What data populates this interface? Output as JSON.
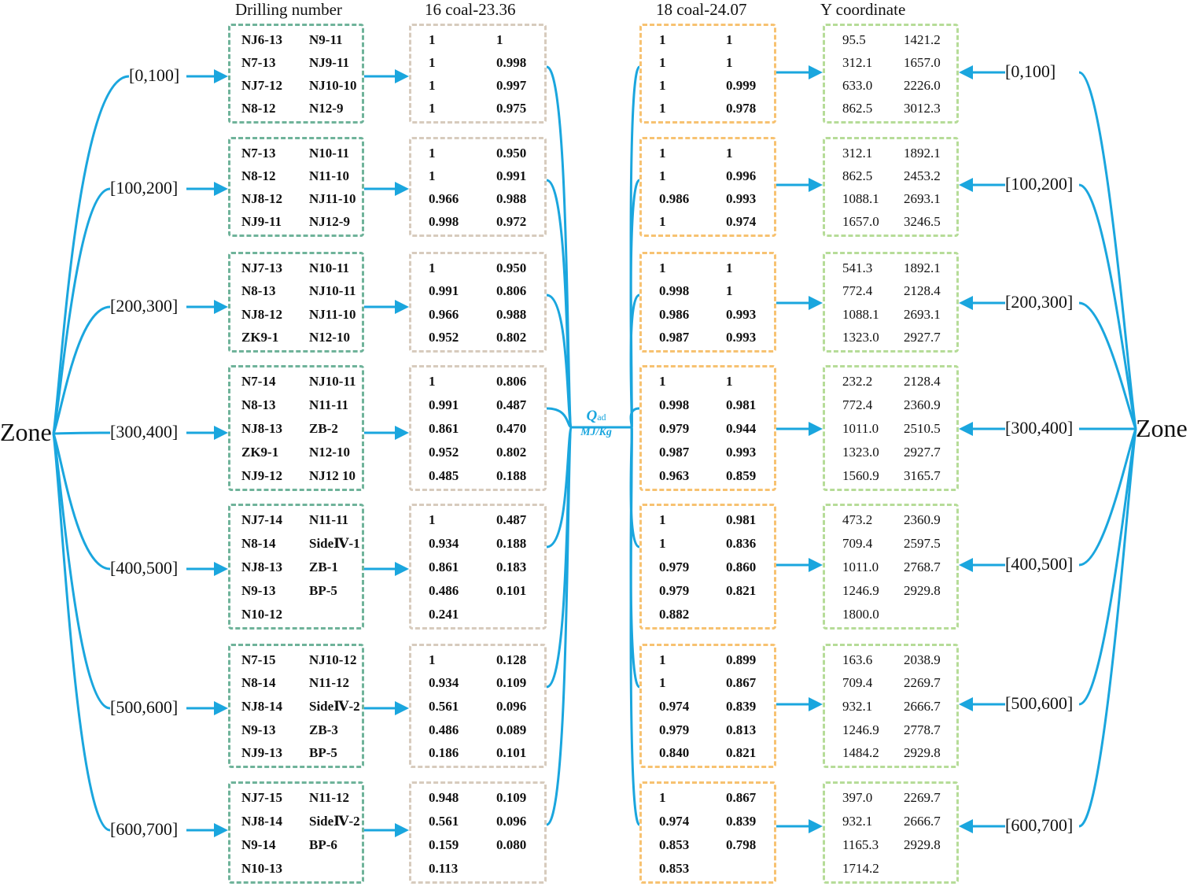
{
  "headers": {
    "drilling": "Drilling number",
    "coal16": "16 coal-23.36",
    "coal18": "18 coal-24.07",
    "ycoord": "Y coordinate"
  },
  "zone_left": "Zone",
  "zone_right": "Zone",
  "qad": {
    "symbol": "Q",
    "sub": "ad",
    "unit": "MJ/Kg"
  },
  "colors": {
    "arrow": "#1aa6de",
    "drill_border": "#6fb39a",
    "coal16_border": "#d7cbbd",
    "coal18_border": "#f7c271",
    "ycoord_border": "#b6dc98"
  },
  "groups": [
    {
      "range": "[0,100]",
      "drilling": [
        [
          "NJ6-13",
          "N9-11"
        ],
        [
          "N7-13",
          "NJ9-11"
        ],
        [
          "NJ7-12",
          "NJ10-10"
        ],
        [
          "N8-12",
          "N12-9"
        ]
      ],
      "coal16": [
        [
          "1",
          "1"
        ],
        [
          "1",
          "0.998"
        ],
        [
          "1",
          "0.997"
        ],
        [
          "1",
          "0.975"
        ]
      ],
      "coal18": [
        [
          "1",
          "1"
        ],
        [
          "1",
          "1"
        ],
        [
          "1",
          "0.999"
        ],
        [
          "1",
          "0.978"
        ]
      ],
      "ycoord": [
        [
          "95.5",
          "1421.2"
        ],
        [
          "312.1",
          "1657.0"
        ],
        [
          "633.0",
          "2226.0"
        ],
        [
          "862.5",
          "3012.3"
        ]
      ]
    },
    {
      "range": "[100,200]",
      "drilling": [
        [
          "N7-13",
          "N10-11"
        ],
        [
          "N8-12",
          "N11-10"
        ],
        [
          "NJ8-12",
          "NJ11-10"
        ],
        [
          "NJ9-11",
          "NJ12-9"
        ]
      ],
      "coal16": [
        [
          "1",
          "0.950"
        ],
        [
          "1",
          "0.991"
        ],
        [
          "0.966",
          "0.988"
        ],
        [
          "0.998",
          "0.972"
        ]
      ],
      "coal18": [
        [
          "1",
          "1"
        ],
        [
          "1",
          "0.996"
        ],
        [
          "0.986",
          "0.993"
        ],
        [
          "1",
          "0.974"
        ]
      ],
      "ycoord": [
        [
          "312.1",
          "1892.1"
        ],
        [
          "862.5",
          "2453.2"
        ],
        [
          "1088.1",
          "2693.1"
        ],
        [
          "1657.0",
          "3246.5"
        ]
      ]
    },
    {
      "range": "[200,300]",
      "drilling": [
        [
          "NJ7-13",
          "N10-11"
        ],
        [
          "N8-13",
          "NJ10-11"
        ],
        [
          "NJ8-12",
          "NJ11-10"
        ],
        [
          "ZK9-1",
          "N12-10"
        ]
      ],
      "coal16": [
        [
          "1",
          "0.950"
        ],
        [
          "0.991",
          "0.806"
        ],
        [
          "0.966",
          "0.988"
        ],
        [
          "0.952",
          "0.802"
        ]
      ],
      "coal18": [
        [
          "1",
          "1"
        ],
        [
          "0.998",
          "1"
        ],
        [
          "0.986",
          "0.993"
        ],
        [
          "0.987",
          "0.993"
        ]
      ],
      "ycoord": [
        [
          "541.3",
          "1892.1"
        ],
        [
          "772.4",
          "2128.4"
        ],
        [
          "1088.1",
          "2693.1"
        ],
        [
          "1323.0",
          "2927.7"
        ]
      ]
    },
    {
      "range": "[300,400]",
      "drilling": [
        [
          "N7-14",
          "NJ10-11"
        ],
        [
          "N8-13",
          "N11-11"
        ],
        [
          "NJ8-13",
          "ZB-2"
        ],
        [
          "ZK9-1",
          "N12-10"
        ],
        [
          "NJ9-12",
          "NJ12 10"
        ]
      ],
      "coal16": [
        [
          "1",
          "0.806"
        ],
        [
          "0.991",
          "0.487"
        ],
        [
          "0.861",
          "0.470"
        ],
        [
          "0.952",
          "0.802"
        ],
        [
          "0.485",
          "0.188"
        ]
      ],
      "coal18": [
        [
          "1",
          "1"
        ],
        [
          "0.998",
          "0.981"
        ],
        [
          "0.979",
          "0.944"
        ],
        [
          "0.987",
          "0.993"
        ],
        [
          "0.963",
          "0.859"
        ]
      ],
      "ycoord": [
        [
          "232.2",
          "2128.4"
        ],
        [
          "772.4",
          "2360.9"
        ],
        [
          "1011.0",
          "2510.5"
        ],
        [
          "1323.0",
          "2927.7"
        ],
        [
          "1560.9",
          "3165.7"
        ]
      ]
    },
    {
      "range": "[400,500]",
      "drilling": [
        [
          "NJ7-14",
          "N11-11"
        ],
        [
          "N8-14",
          "SideⅣ-1"
        ],
        [
          "NJ8-13",
          "ZB-1"
        ],
        [
          "N9-13",
          "BP-5"
        ],
        [
          "N10-12",
          ""
        ]
      ],
      "coal16": [
        [
          "1",
          "0.487"
        ],
        [
          "0.934",
          "0.188"
        ],
        [
          "0.861",
          "0.183"
        ],
        [
          "0.486",
          "0.101"
        ],
        [
          "0.241",
          ""
        ]
      ],
      "coal18": [
        [
          "1",
          "0.981"
        ],
        [
          "1",
          "0.836"
        ],
        [
          "0.979",
          "0.860"
        ],
        [
          "0.979",
          "0.821"
        ],
        [
          "0.882",
          ""
        ]
      ],
      "ycoord": [
        [
          "473.2",
          "2360.9"
        ],
        [
          "709.4",
          "2597.5"
        ],
        [
          "1011.0",
          "2768.7"
        ],
        [
          "1246.9",
          "2929.8"
        ],
        [
          "1800.0",
          ""
        ]
      ]
    },
    {
      "range": "[500,600]",
      "drilling": [
        [
          "N7-15",
          "NJ10-12"
        ],
        [
          "N8-14",
          "N11-12"
        ],
        [
          "NJ8-14",
          "SideⅣ-2"
        ],
        [
          "N9-13",
          "ZB-3"
        ],
        [
          "NJ9-13",
          "BP-5"
        ]
      ],
      "coal16": [
        [
          "1",
          "0.128"
        ],
        [
          "0.934",
          "0.109"
        ],
        [
          "0.561",
          "0.096"
        ],
        [
          "0.486",
          "0.089"
        ],
        [
          "0.186",
          "0.101"
        ]
      ],
      "coal18": [
        [
          "1",
          "0.899"
        ],
        [
          "1",
          "0.867"
        ],
        [
          "0.974",
          "0.839"
        ],
        [
          "0.979",
          "0.813"
        ],
        [
          "0.840",
          "0.821"
        ]
      ],
      "ycoord": [
        [
          "163.6",
          "2038.9"
        ],
        [
          "709.4",
          "2269.7"
        ],
        [
          "932.1",
          "2666.7"
        ],
        [
          "1246.9",
          "2778.7"
        ],
        [
          "1484.2",
          "2929.8"
        ]
      ]
    },
    {
      "range": "[600,700]",
      "drilling": [
        [
          "NJ7-15",
          "N11-12"
        ],
        [
          "NJ8-14",
          "SideⅣ-2"
        ],
        [
          "N9-14",
          "BP-6"
        ],
        [
          "N10-13",
          ""
        ]
      ],
      "coal16": [
        [
          "0.948",
          "0.109"
        ],
        [
          "0.561",
          "0.096"
        ],
        [
          "0.159",
          "0.080"
        ],
        [
          "0.113",
          ""
        ]
      ],
      "coal18": [
        [
          "1",
          "0.867"
        ],
        [
          "0.974",
          "0.839"
        ],
        [
          "0.853",
          "0.798"
        ],
        [
          "0.853",
          ""
        ]
      ],
      "ycoord": [
        [
          "397.0",
          "2269.7"
        ],
        [
          "932.1",
          "2666.7"
        ],
        [
          "1165.3",
          "2929.8"
        ],
        [
          "1714.2",
          ""
        ]
      ]
    }
  ]
}
